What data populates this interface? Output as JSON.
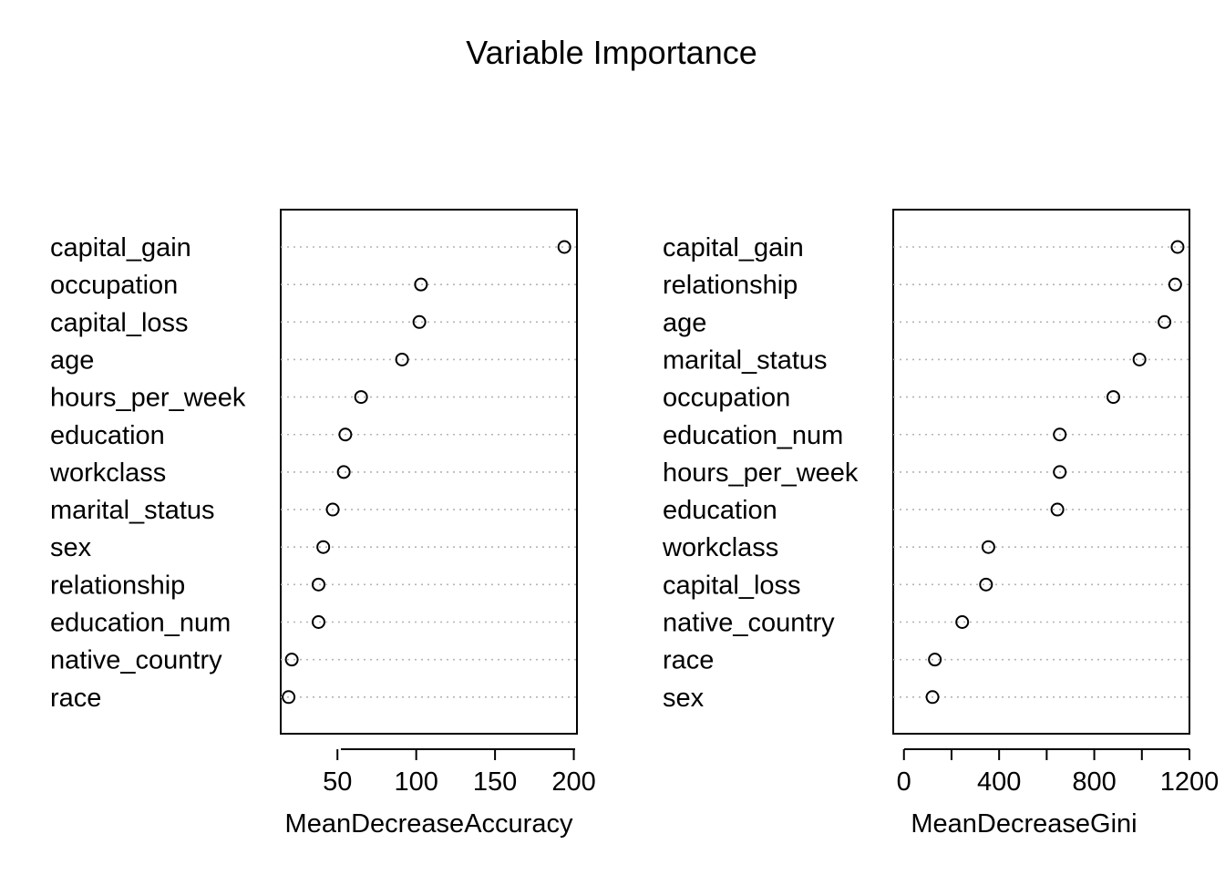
{
  "chart_data": [
    {
      "type": "scatter",
      "title": "Variable Importance",
      "xlabel": "MeanDecreaseAccuracy",
      "ylabel": "",
      "categories": [
        "capital_gain",
        "occupation",
        "capital_loss",
        "age",
        "hours_per_week",
        "education",
        "workclass",
        "marital_status",
        "sex",
        "relationship",
        "education_num",
        "native_country",
        "race"
      ],
      "values": [
        194,
        103,
        102,
        91,
        65,
        55,
        54,
        47,
        41,
        38,
        38,
        21,
        19
      ],
      "xlim": [
        14,
        202
      ],
      "xticks": [
        "50",
        "100",
        "150",
        "200"
      ],
      "grid": false
    },
    {
      "type": "scatter",
      "title": "Variable Importance",
      "xlabel": "MeanDecreaseGini",
      "ylabel": "",
      "categories": [
        "capital_gain",
        "relationship",
        "age",
        "marital_status",
        "occupation",
        "education_num",
        "hours_per_week",
        "education",
        "workclass",
        "capital_loss",
        "native_country",
        "race",
        "sex"
      ],
      "values": [
        1150,
        1140,
        1095,
        990,
        880,
        655,
        655,
        645,
        355,
        345,
        245,
        130,
        120
      ],
      "xlim": [
        -45,
        1200
      ],
      "xticks": [
        "0",
        "400",
        "800",
        "1200"
      ],
      "minor_ticks": [
        200,
        600,
        1000
      ],
      "grid": false
    }
  ]
}
